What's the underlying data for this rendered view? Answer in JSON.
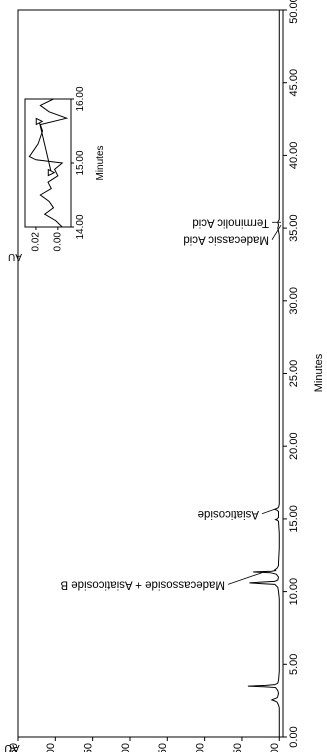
{
  "chart_data": {
    "type": "line",
    "orientation": "rotated-90-clockwise",
    "xlabel": "Minutes",
    "ylabel": "AU",
    "xlim": [
      0,
      50
    ],
    "ylim": [
      -0.05,
      3.5
    ],
    "x_ticks": [
      "0.00",
      "5.00",
      "10.00",
      "15.00",
      "20.00",
      "25.00",
      "30.00",
      "35.00",
      "40.00",
      "45.00",
      "50.00"
    ],
    "y_ticks": [
      "0.00",
      "0.50",
      "1.00",
      "1.50",
      "2.00",
      "2.50",
      "3.00",
      "3.50"
    ],
    "series": [
      {
        "x": [
          0,
          2.0,
          2.2,
          2.4,
          2.5,
          2.55,
          2.6,
          2.65,
          2.7,
          2.8,
          3.0,
          3.2,
          3.4,
          3.45,
          3.5,
          3.55,
          3.6,
          3.7,
          3.9,
          4.5,
          6,
          8,
          9.5,
          10.0,
          10.3,
          10.5,
          10.55,
          10.6,
          10.65,
          10.7,
          10.8,
          11.0,
          11.2,
          11.3,
          11.35,
          11.4,
          11.45,
          11.5,
          11.6,
          11.8,
          12,
          13,
          14,
          14.8,
          14.9,
          14.95,
          15.0,
          15.05,
          15.1,
          15.2,
          15.5,
          15.6,
          15.65,
          15.7,
          15.75,
          15.8,
          16,
          17,
          20,
          25,
          30,
          34.5,
          34.8,
          35.0,
          35.2,
          35.4,
          35.6,
          40,
          45,
          50
        ],
        "y": [
          0.0,
          0.0,
          0.01,
          0.03,
          0.07,
          0.1,
          0.08,
          0.05,
          0.03,
          0.02,
          0.01,
          0.02,
          0.05,
          0.18,
          0.42,
          0.18,
          0.06,
          0.02,
          0.01,
          0.0,
          0.0,
          0.0,
          0.0,
          0.01,
          0.02,
          0.06,
          0.25,
          0.4,
          0.25,
          0.06,
          0.02,
          0.01,
          0.04,
          0.12,
          0.35,
          0.1,
          0.05,
          0.06,
          0.03,
          0.01,
          0.01,
          0.0,
          0.0,
          0.01,
          0.02,
          0.05,
          0.03,
          0.02,
          0.01,
          0.01,
          0.01,
          0.03,
          0.06,
          0.04,
          0.02,
          0.01,
          0.0,
          0.0,
          0.0,
          0.0,
          0.0,
          0.0,
          0.01,
          0.02,
          0.01,
          0.02,
          0.0,
          0.0,
          0.0,
          0.0
        ]
      }
    ],
    "annotations": [
      {
        "label": "Madecassoside + Asiaticoside B",
        "x": 11.3
      },
      {
        "label": "Asiaticoside",
        "x": 15.7
      },
      {
        "label": "Madecassic Acid",
        "x": 35.2
      },
      {
        "label": "Terminolic Acid",
        "x": 35.4
      }
    ],
    "inset": {
      "xlabel": "Minutes",
      "ylabel": "AU",
      "xlim": [
        14,
        16
      ],
      "ylim": [
        -0.012,
        0.03
      ],
      "x_ticks": [
        "14.00",
        "15.00",
        "16.00"
      ],
      "y_ticks": [
        "0.00",
        "0.02"
      ],
      "x": [
        14.0,
        14.1,
        14.2,
        14.3,
        14.4,
        14.5,
        14.6,
        14.7,
        14.8,
        14.9,
        15.0,
        15.05,
        15.1,
        15.2,
        15.3,
        15.4,
        15.5,
        15.6,
        15.7,
        15.8,
        15.9,
        16.0
      ],
      "y": [
        -0.004,
        0.002,
        0.012,
        0.004,
        0.008,
        0.016,
        0.006,
        0.009,
        0.0,
        0.003,
        -0.004,
        0.02,
        0.026,
        0.022,
        0.018,
        0.016,
        0.014,
        0.016,
        -0.008,
        0.008,
        0.016,
        0.004
      ],
      "baseline_markers": [
        14.85,
        15.65
      ]
    }
  }
}
